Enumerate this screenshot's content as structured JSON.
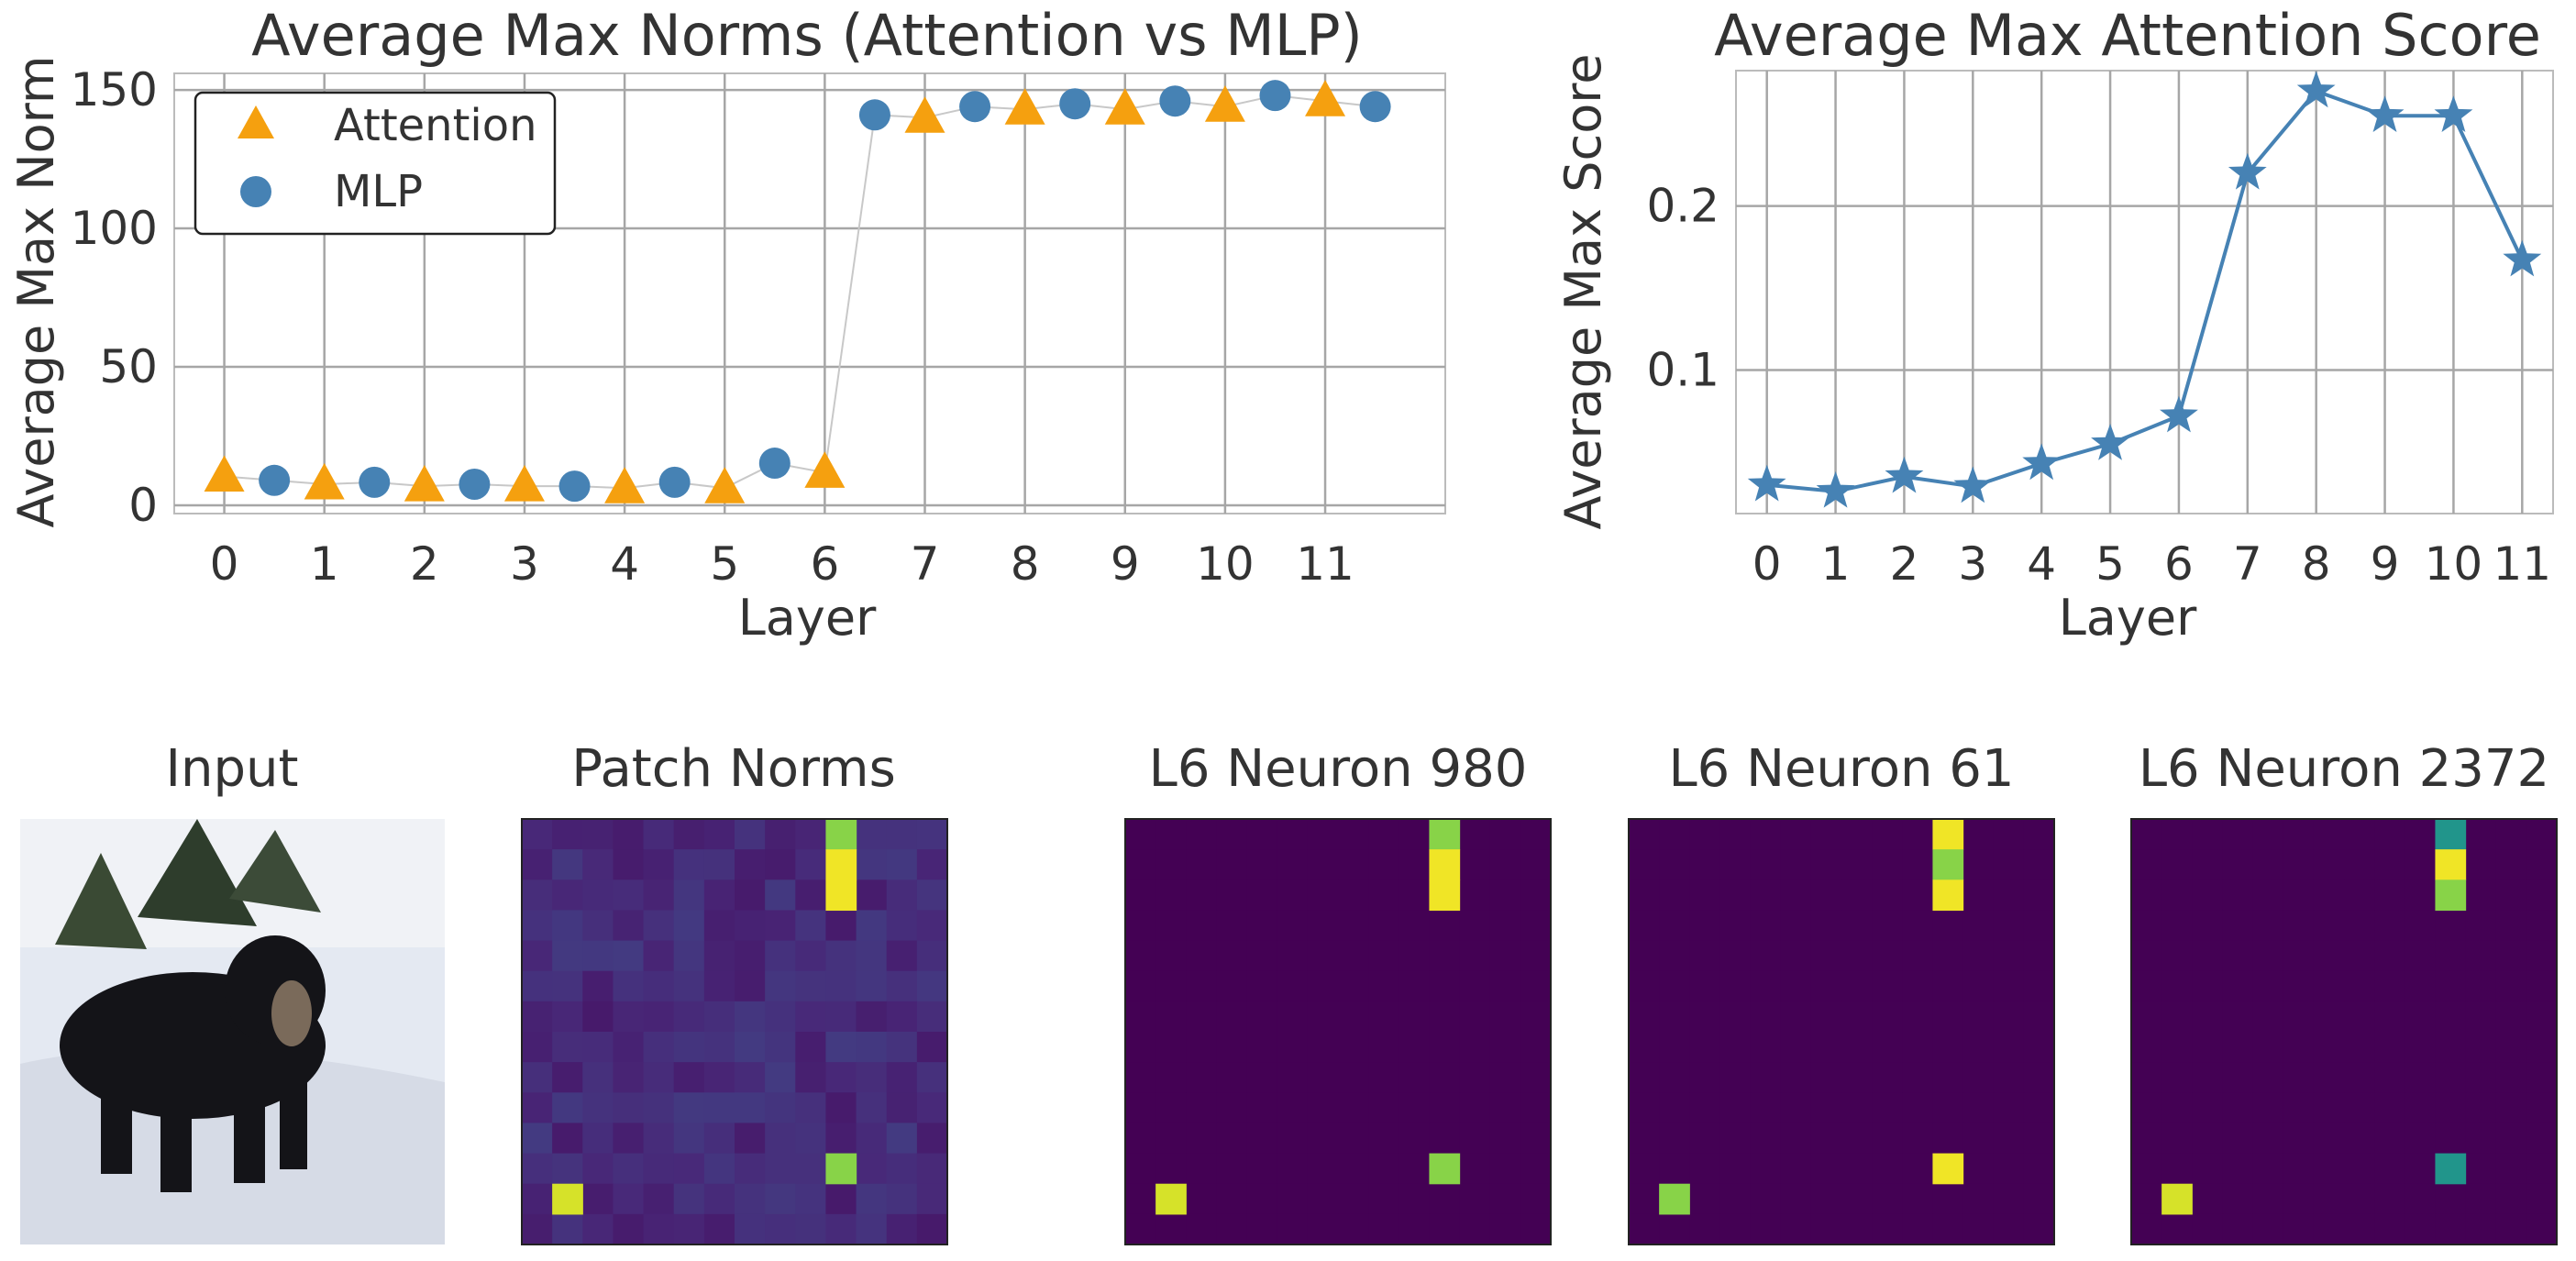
{
  "chart_data": [
    {
      "type": "scatter",
      "title": "Average Max Norms (Attention vs MLP)",
      "xlabel": "Layer",
      "ylabel": "Average Max Norm",
      "xlim": [
        -0.5,
        12.2
      ],
      "ylim": [
        -3,
        156
      ],
      "xticks": [
        "0",
        "1",
        "2",
        "3",
        "4",
        "5",
        "6",
        "7",
        "8",
        "9",
        "10",
        "11"
      ],
      "yticks": [
        0,
        50,
        100,
        150
      ],
      "grid": true,
      "legend_position": "top-left",
      "connector_color": "#c8c8c8",
      "series": [
        {
          "name": "Attention",
          "marker": "triangle",
          "color": "#f5a00f",
          "x": [
            0,
            1,
            2,
            3,
            4,
            5,
            6,
            7,
            8,
            9,
            10,
            11
          ],
          "values": [
            10.4,
            7.6,
            6.9,
            6.9,
            6.2,
            6.2,
            11.8,
            140,
            143,
            143,
            144,
            146
          ]
        },
        {
          "name": "MLP",
          "marker": "circle",
          "color": "#4682b4",
          "x": [
            0.5,
            1.5,
            2.5,
            3.5,
            4.5,
            5.5,
            6.5,
            7.5,
            8.5,
            9.5,
            10.5,
            11.5
          ],
          "values": [
            9.0,
            8.3,
            7.6,
            6.9,
            8.3,
            15.2,
            141,
            144,
            145,
            146,
            148,
            144
          ]
        }
      ]
    },
    {
      "type": "line",
      "title": "Average Max Attention Score",
      "xlabel": "Layer",
      "ylabel": "Average Max Score",
      "xlim": [
        -0.45,
        11.45
      ],
      "ylim": [
        0.0125,
        0.2825
      ],
      "categories": [
        "0",
        "1",
        "2",
        "3",
        "4",
        "5",
        "6",
        "7",
        "8",
        "9",
        "10",
        "11"
      ],
      "yticks": [
        0.1,
        0.2
      ],
      "ytick_labels": [
        "0.1",
        "0.2"
      ],
      "grid": true,
      "color": "#4682b4",
      "marker": "star",
      "values": [
        0.03,
        0.026,
        0.035,
        0.029,
        0.043,
        0.055,
        0.072,
        0.22,
        0.27,
        0.255,
        0.255,
        0.167
      ]
    },
    {
      "type": "heatmap",
      "title": "Patch Norms",
      "grid_size": 14,
      "colormap": "viridis",
      "background": "low-noise",
      "cells": [
        {
          "row": 0,
          "col": 10,
          "value": 0.82
        },
        {
          "row": 1,
          "col": 10,
          "value": 0.98
        },
        {
          "row": 2,
          "col": 10,
          "value": 0.98
        },
        {
          "row": 11,
          "col": 10,
          "value": 0.82
        },
        {
          "row": 12,
          "col": 1,
          "value": 0.94
        }
      ]
    },
    {
      "type": "heatmap",
      "title": "L6 Neuron 980",
      "grid_size": 14,
      "colormap": "viridis",
      "background": "zero",
      "cells": [
        {
          "row": 0,
          "col": 10,
          "value": 0.82
        },
        {
          "row": 1,
          "col": 10,
          "value": 0.98
        },
        {
          "row": 2,
          "col": 10,
          "value": 0.98
        },
        {
          "row": 11,
          "col": 10,
          "value": 0.82
        },
        {
          "row": 12,
          "col": 1,
          "value": 0.94
        }
      ]
    },
    {
      "type": "heatmap",
      "title": "L6 Neuron 61",
      "grid_size": 14,
      "colormap": "viridis",
      "background": "zero",
      "cells": [
        {
          "row": 0,
          "col": 10,
          "value": 0.98
        },
        {
          "row": 1,
          "col": 10,
          "value": 0.82
        },
        {
          "row": 2,
          "col": 10,
          "value": 0.98
        },
        {
          "row": 11,
          "col": 10,
          "value": 0.98
        },
        {
          "row": 12,
          "col": 1,
          "value": 0.82
        }
      ]
    },
    {
      "type": "heatmap",
      "title": "L6 Neuron 2372",
      "grid_size": 14,
      "colormap": "viridis",
      "background": "zero",
      "cells": [
        {
          "row": 0,
          "col": 10,
          "value": 0.52
        },
        {
          "row": 1,
          "col": 10,
          "value": 0.98
        },
        {
          "row": 2,
          "col": 10,
          "value": 0.82
        },
        {
          "row": 11,
          "col": 10,
          "value": 0.52
        },
        {
          "row": 12,
          "col": 1,
          "value": 0.94
        }
      ]
    }
  ],
  "input_image": {
    "title": "Input",
    "description_icon": "dog-in-snow-photo"
  }
}
